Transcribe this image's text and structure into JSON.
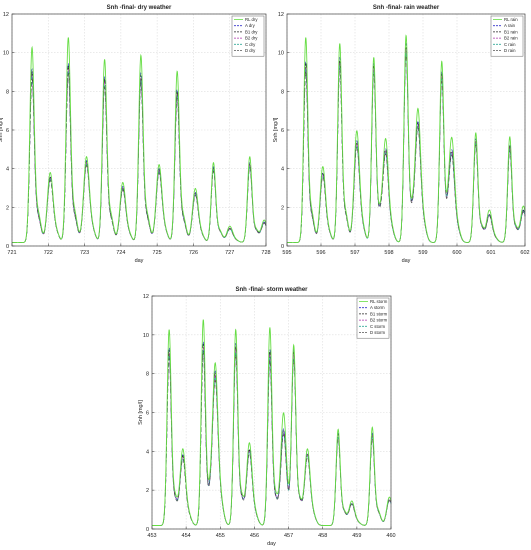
{
  "chart_data": [
    {
      "type": "line",
      "title": "Snh -final- dry weather",
      "xlabel": "day",
      "ylabel": "Snh [mg/l]",
      "xlim": [
        721,
        728
      ],
      "ylim": [
        0,
        12
      ],
      "xticks": [
        721,
        722,
        723,
        724,
        725,
        726,
        727,
        728
      ],
      "yticks": [
        0,
        2,
        4,
        6,
        8,
        10,
        12
      ],
      "grid": true,
      "legend_position": "top-right",
      "series": [
        {
          "name": "RL dry",
          "color": "#66dd44",
          "dash": "solid"
        },
        {
          "name": "A dry",
          "color": "#3333cc",
          "dash": "dash"
        },
        {
          "name": "B1 dry",
          "color": "#222222",
          "dash": "dashdot"
        },
        {
          "name": "B2 dry",
          "color": "#aa33aa",
          "dash": "dash"
        },
        {
          "name": "C dry",
          "color": "#33aa99",
          "dash": "dash"
        },
        {
          "name": "D dry",
          "color": "#555555",
          "dash": "dash"
        }
      ],
      "peaks": [
        {
          "x": 721.55,
          "rl": 10.0,
          "others": 8.9
        },
        {
          "x": 722.05,
          "rl": 3.7,
          "others": 3.5
        },
        {
          "x": 722.55,
          "rl": 10.5,
          "others": 9.2
        },
        {
          "x": 723.05,
          "rl": 4.5,
          "others": 4.3
        },
        {
          "x": 723.55,
          "rl": 9.4,
          "others": 8.5
        },
        {
          "x": 724.05,
          "rl": 3.2,
          "others": 3.0
        },
        {
          "x": 724.55,
          "rl": 9.6,
          "others": 8.7
        },
        {
          "x": 725.05,
          "rl": 4.1,
          "others": 3.9
        },
        {
          "x": 725.55,
          "rl": 8.8,
          "others": 7.9
        },
        {
          "x": 726.05,
          "rl": 2.9,
          "others": 2.7
        },
        {
          "x": 726.55,
          "rl": 4.2,
          "others": 4.0
        },
        {
          "x": 727.0,
          "rl": 1.0,
          "others": 0.9
        },
        {
          "x": 727.55,
          "rl": 4.5,
          "others": 4.2
        },
        {
          "x": 727.95,
          "rl": 1.3,
          "others": 1.2
        }
      ]
    },
    {
      "type": "line",
      "title": "Snh -final- rain weather",
      "xlabel": "day",
      "ylabel": "Snh [mg/l]",
      "xlim": [
        595,
        602
      ],
      "ylim": [
        0,
        12
      ],
      "xticks": [
        595,
        596,
        597,
        598,
        599,
        600,
        601,
        602
      ],
      "yticks": [
        0,
        2,
        4,
        6,
        8,
        10,
        12
      ],
      "grid": true,
      "legend_position": "top-right",
      "series": [
        {
          "name": "RL rain",
          "color": "#66dd44",
          "dash": "solid"
        },
        {
          "name": "A rain",
          "color": "#3333cc",
          "dash": "dash"
        },
        {
          "name": "B1 rain",
          "color": "#222222",
          "dash": "dashdot"
        },
        {
          "name": "B2 rain",
          "color": "#aa33aa",
          "dash": "dash"
        },
        {
          "name": "C rain",
          "color": "#33aa99",
          "dash": "dash"
        },
        {
          "name": "D rain",
          "color": "#555555",
          "dash": "dash"
        }
      ],
      "peaks": [
        {
          "x": 595.55,
          "rl": 10.5,
          "others": 9.3
        },
        {
          "x": 596.05,
          "rl": 4.0,
          "others": 3.7
        },
        {
          "x": 596.55,
          "rl": 10.2,
          "others": 9.5
        },
        {
          "x": 597.05,
          "rl": 5.8,
          "others": 5.3
        },
        {
          "x": 597.55,
          "rl": 9.5,
          "others": 9.2
        },
        {
          "x": 597.9,
          "rl": 5.3,
          "others": 4.8
        },
        {
          "x": 598.5,
          "rl": 10.6,
          "others": 10.2
        },
        {
          "x": 598.85,
          "rl": 6.8,
          "others": 6.2
        },
        {
          "x": 599.55,
          "rl": 9.3,
          "others": 8.8
        },
        {
          "x": 599.85,
          "rl": 5.1,
          "others": 4.5
        },
        {
          "x": 600.55,
          "rl": 5.7,
          "others": 5.4
        },
        {
          "x": 600.95,
          "rl": 1.8,
          "others": 1.6
        },
        {
          "x": 601.55,
          "rl": 5.5,
          "others": 5.1
        },
        {
          "x": 601.95,
          "rl": 2.0,
          "others": 1.8
        }
      ]
    },
    {
      "type": "line",
      "title": "Snh -final- storm weather",
      "xlabel": "day",
      "ylabel": "Snh [mg/l]",
      "xlim": [
        453,
        460
      ],
      "ylim": [
        0,
        12
      ],
      "xticks": [
        453,
        454,
        455,
        456,
        457,
        458,
        459,
        460
      ],
      "yticks": [
        0,
        2,
        4,
        6,
        8,
        10,
        12
      ],
      "grid": true,
      "legend_position": "top-right",
      "series": [
        {
          "name": "RL storm",
          "color": "#66dd44",
          "dash": "solid"
        },
        {
          "name": "A storm",
          "color": "#3333cc",
          "dash": "dash"
        },
        {
          "name": "B1 storm",
          "color": "#222222",
          "dash": "dashdot"
        },
        {
          "name": "B2 storm",
          "color": "#aa33aa",
          "dash": "dash"
        },
        {
          "name": "C storm",
          "color": "#33aa99",
          "dash": "dash"
        },
        {
          "name": "D storm",
          "color": "#555555",
          "dash": "dash"
        }
      ],
      "peaks": [
        {
          "x": 453.5,
          "rl": 10.0,
          "others": 9.1
        },
        {
          "x": 453.9,
          "rl": 4.0,
          "others": 3.7
        },
        {
          "x": 454.5,
          "rl": 10.5,
          "others": 9.4
        },
        {
          "x": 454.85,
          "rl": 8.2,
          "others": 7.8
        },
        {
          "x": 455.45,
          "rl": 10.0,
          "others": 9.3
        },
        {
          "x": 455.85,
          "rl": 4.3,
          "others": 4.0
        },
        {
          "x": 456.45,
          "rl": 10.1,
          "others": 9.0
        },
        {
          "x": 456.85,
          "rl": 5.8,
          "others": 5.0
        },
        {
          "x": 457.15,
          "rl": 9.0,
          "others": 8.8
        },
        {
          "x": 457.55,
          "rl": 4.0,
          "others": 3.8
        },
        {
          "x": 458.45,
          "rl": 5.0,
          "others": 4.8
        },
        {
          "x": 458.85,
          "rl": 1.4,
          "others": 1.3
        },
        {
          "x": 459.45,
          "rl": 5.1,
          "others": 4.8
        },
        {
          "x": 459.95,
          "rl": 1.6,
          "others": 1.5
        }
      ]
    }
  ]
}
